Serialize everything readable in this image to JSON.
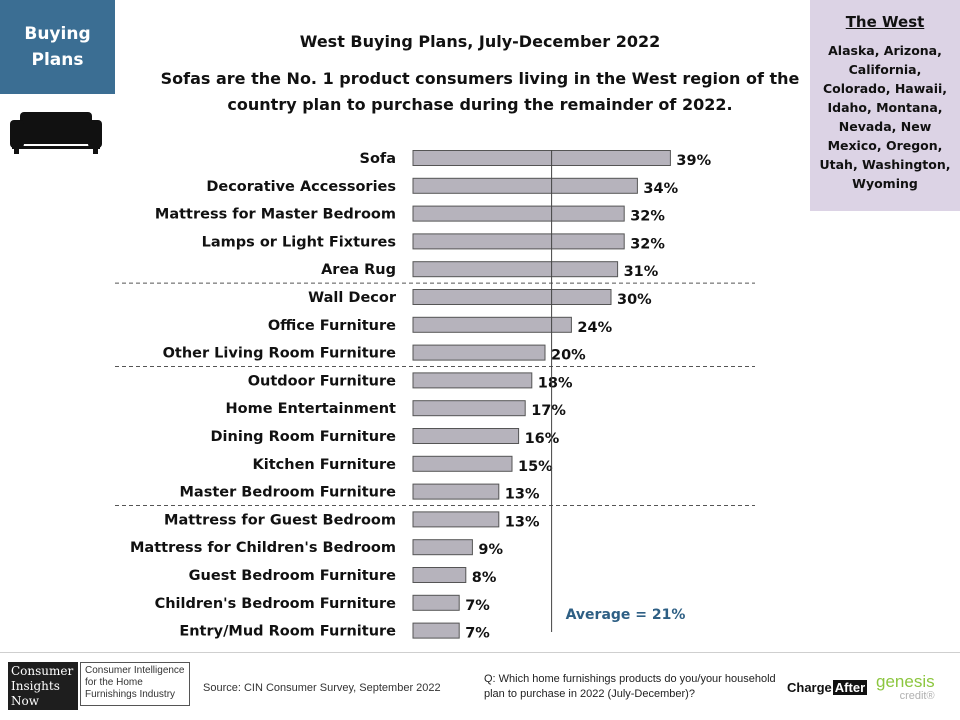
{
  "tag": {
    "line1": "Buying",
    "line2": "Plans"
  },
  "title": "West Buying Plans, July-December 2022",
  "subtitle_line1": "Sofas are the No. 1 product consumers living in the West region of the",
  "subtitle_line2": "country plan to purchase during the remainder of 2022.",
  "region": {
    "title": "The West",
    "states": "Alaska, Arizona, California, Colorado, Hawaii, Idaho, Montana, Nevada, New Mexico, Oregon, Utah, Washington, Wyoming"
  },
  "icons": {
    "sofa": "sofa-icon"
  },
  "colors": {
    "tag_bg": "#3b6e93",
    "bar_fill": "#b6b3bc",
    "average_text": "#2e5f84",
    "region_bg": "#dcd3e5"
  },
  "chart_data": {
    "type": "bar",
    "orientation": "horizontal",
    "categories": [
      "Sofa",
      "Decorative Accessories",
      "Mattress for Master Bedroom",
      "Lamps or Light Fixtures",
      "Area Rug",
      "Wall Decor",
      "Office Furniture",
      "Other Living Room Furniture",
      "Outdoor Furniture",
      "Home Entertainment",
      "Dining Room Furniture",
      "Kitchen Furniture",
      "Master Bedroom Furniture",
      "Mattress for Guest Bedroom",
      "Mattress for Children's Bedroom",
      "Guest Bedroom Furniture",
      "Children's Bedroom Furniture",
      "Entry/Mud Room Furniture"
    ],
    "values": [
      39,
      34,
      32,
      32,
      31,
      30,
      24,
      20,
      18,
      17,
      16,
      15,
      13,
      13,
      9,
      8,
      7,
      7
    ],
    "value_labels": [
      "39%",
      "34%",
      "32%",
      "32%",
      "31%",
      "30%",
      "24%",
      "20%",
      "18%",
      "17%",
      "16%",
      "15%",
      "13%",
      "13%",
      "9%",
      "8%",
      "7%",
      "7%"
    ],
    "average": 21,
    "average_label": "Average = 21%",
    "separators_after_index": [
      4,
      7,
      12
    ],
    "xlim": [
      0,
      45
    ]
  },
  "footer": {
    "logo_lines": [
      "Consumer",
      "Insights",
      "Now"
    ],
    "logo_tagline_lines": [
      "Consumer Intelligence",
      "for the Home",
      "Furnishings Industry"
    ],
    "source": "Source: CIN Consumer Survey, September  2022",
    "question": "Q: Which home furnishings products do you/your household plan to purchase in 2022 (July-December)?",
    "chargeafter_1": "Charge",
    "chargeafter_2": "After",
    "genesis": "genesis",
    "genesis_credit": "credit®"
  }
}
